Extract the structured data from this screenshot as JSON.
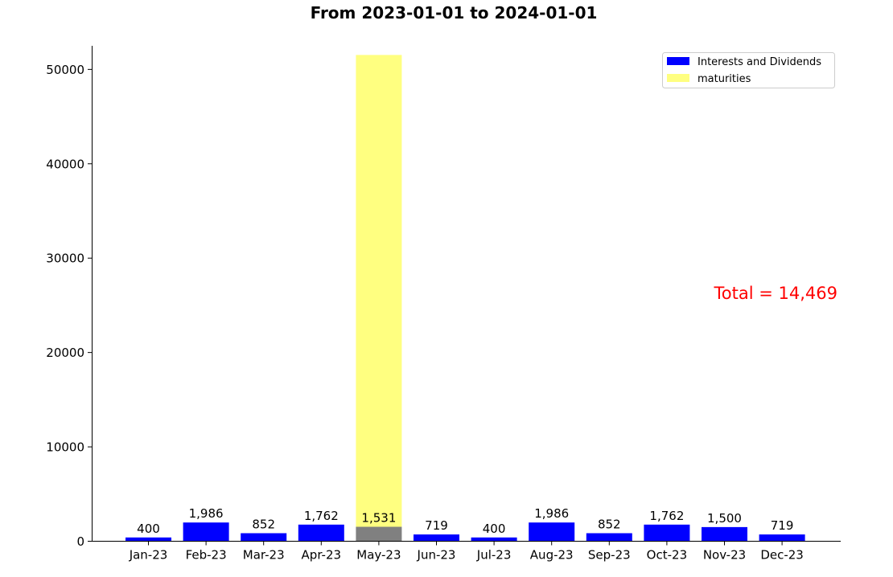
{
  "chart_data": {
    "type": "bar",
    "subtitle": "From 2023-01-01 to 2024-01-01",
    "categories": [
      "Jan-23",
      "Feb-23",
      "Mar-23",
      "Apr-23",
      "May-23",
      "Jun-23",
      "Jul-23",
      "Aug-23",
      "Sep-23",
      "Oct-23",
      "Nov-23",
      "Dec-23"
    ],
    "series": [
      {
        "name": "Interests and Dividends",
        "color": "#0000ff",
        "values": [
          400,
          1986,
          852,
          1762,
          1531,
          719,
          400,
          1986,
          852,
          1762,
          1500,
          719
        ],
        "value_labels": [
          "400",
          "1,986",
          "852",
          "1,762",
          "1,531",
          "719",
          "400",
          "1,986",
          "852",
          "1,762",
          "1,500",
          "719"
        ],
        "highlight": {
          "index": 4,
          "color": "#808080"
        }
      },
      {
        "name": "maturities",
        "color": "#ffff80",
        "values": [
          0,
          0,
          0,
          0,
          50000,
          0,
          0,
          0,
          0,
          0,
          0,
          0
        ]
      }
    ],
    "ylim": [
      0,
      52500
    ],
    "yticks": [
      0,
      10000,
      20000,
      30000,
      40000,
      50000
    ],
    "ytick_labels": [
      "0",
      "10000",
      "20000",
      "30000",
      "40000",
      "50000"
    ],
    "xlabel": "",
    "ylabel": "",
    "grid": false,
    "legend_position": "top-right",
    "annotation": {
      "text": "Total = 14,469",
      "color": "#ff0000"
    }
  }
}
